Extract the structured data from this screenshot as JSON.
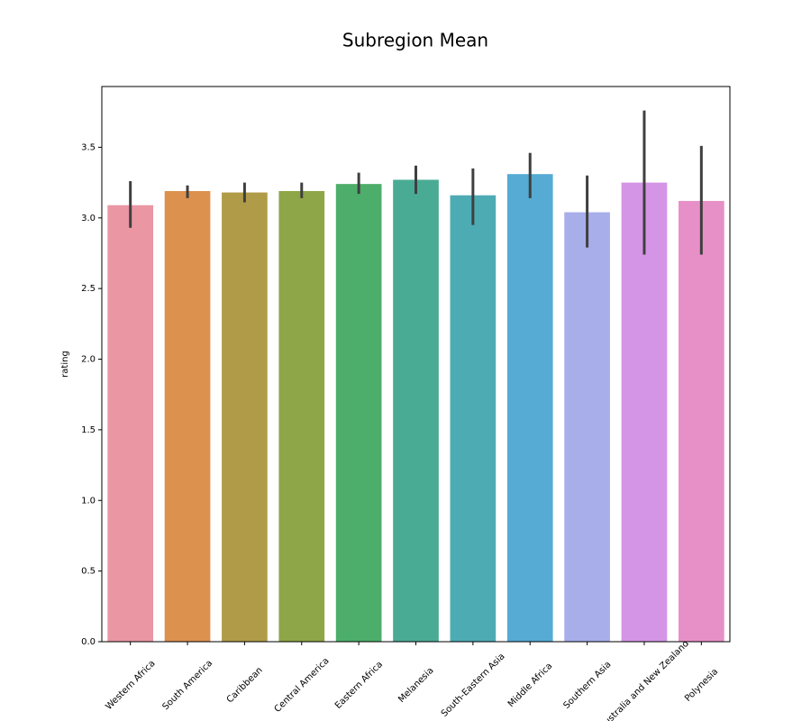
{
  "chart_data": {
    "type": "bar",
    "title": "Subregion Mean",
    "ylabel": "rating",
    "categories": [
      "Western Africa",
      "South America",
      "Caribbean",
      "Central America",
      "Eastern Africa",
      "Melanesia",
      "South-Eastern Asia",
      "Middle Africa",
      "Southern Asia",
      "Australia and New Zealand",
      "Polynesia"
    ],
    "values": [
      3.09,
      3.19,
      3.18,
      3.19,
      3.24,
      3.27,
      3.16,
      3.31,
      3.04,
      3.25,
      3.12
    ],
    "ci_low": [
      2.93,
      3.14,
      3.11,
      3.14,
      3.17,
      3.17,
      2.95,
      3.14,
      2.79,
      2.74,
      2.74
    ],
    "ci_high": [
      3.26,
      3.23,
      3.25,
      3.25,
      3.32,
      3.37,
      3.35,
      3.46,
      3.3,
      3.76,
      3.51
    ],
    "colors": [
      "#ea96a3",
      "#dc914f",
      "#b09c48",
      "#8ea647",
      "#4cae6a",
      "#4aab94",
      "#4dabb4",
      "#55abd4",
      "#a8aeea",
      "#d595e6",
      "#e790c8"
    ],
    "ylim": [
      0,
      3.93
    ],
    "yticks": [
      {
        "value": 0,
        "label": "0.0"
      },
      {
        "value": 0.5,
        "label": "0.5"
      },
      {
        "value": 1,
        "label": "1.0"
      },
      {
        "value": 1.5,
        "label": "1.5"
      },
      {
        "value": 2,
        "label": "2.0"
      },
      {
        "value": 2.5,
        "label": "2.5"
      },
      {
        "value": 3,
        "label": "3.0"
      },
      {
        "value": 3.5,
        "label": "3.5"
      }
    ],
    "grid": false
  }
}
